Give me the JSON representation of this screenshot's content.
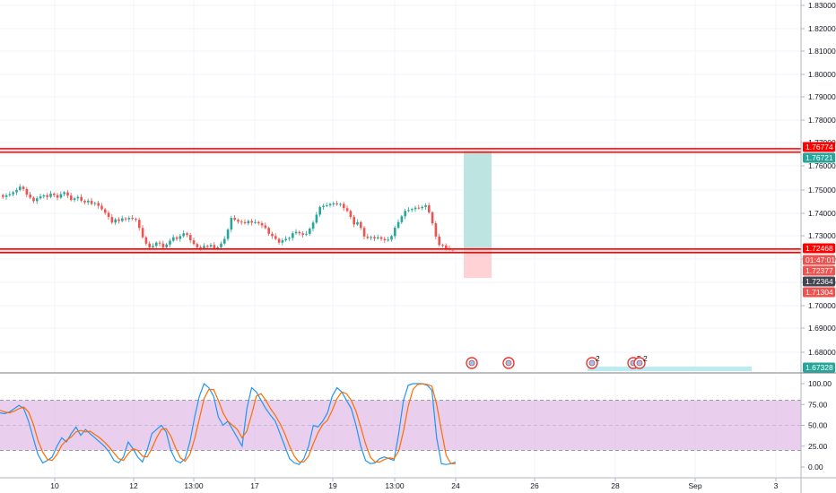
{
  "colors": {
    "up": "#26a69a",
    "down": "#ef5350",
    "grid": "#f0f3fa",
    "axis_line": "#b2b5be",
    "level_line": "#ff0000",
    "k_line": "#2196f3",
    "d_line": "#ff6d00",
    "stoch_band": "#e1bee7",
    "profit_zone": "#b2dfdb",
    "loss_zone": "#ffcdd2",
    "tag_dark": "#434651",
    "target_zone": "#b2ebf2"
  },
  "chart_data": [
    {
      "type": "candlestick",
      "panel": "price",
      "price_axis": {
        "ylim": [
          1.6715,
          1.8345
        ],
        "ticks": [
          1.83,
          1.82,
          1.81,
          1.8,
          1.79,
          1.78,
          1.77,
          1.76,
          1.75,
          1.74,
          1.73,
          1.72,
          1.71,
          1.7,
          1.69,
          1.68
        ],
        "tick_labels": [
          "1.83000",
          "1.82000",
          "1.81000",
          "1.80000",
          "1.79000",
          "1.78000",
          "1.77000",
          "1.76000",
          "1.75000",
          "1.74000",
          "1.73000",
          "1.72000",
          "1.71000",
          "1.70000",
          "1.69000",
          "1.68000"
        ]
      },
      "time_axis": {
        "tick_labels": [
          "10",
          "12",
          "13:00",
          "17",
          "19",
          "13:00",
          "24",
          "26",
          "28",
          "Sep",
          "3"
        ]
      },
      "candle_closes": [
        1.7478,
        1.7485,
        1.749,
        1.7498,
        1.7508,
        1.7522,
        1.7512,
        1.7488,
        1.7475,
        1.746,
        1.7472,
        1.748,
        1.7485,
        1.7478,
        1.7492,
        1.7486,
        1.7475,
        1.749,
        1.7498,
        1.7484,
        1.7465,
        1.7472,
        1.7478,
        1.7462,
        1.7455,
        1.7462,
        1.7448,
        1.7452,
        1.744,
        1.7425,
        1.741,
        1.7392,
        1.7368,
        1.7382,
        1.7375,
        1.7386,
        1.7382,
        1.7388,
        1.7384,
        1.738,
        1.7345,
        1.7305,
        1.7278,
        1.7262,
        1.7268,
        1.7282,
        1.7278,
        1.7262,
        1.7274,
        1.729,
        1.7305,
        1.7298,
        1.731,
        1.7322,
        1.7315,
        1.7292,
        1.7276,
        1.7262,
        1.7258,
        1.7268,
        1.7265,
        1.7272,
        1.7258,
        1.7262,
        1.7278,
        1.7298,
        1.7338,
        1.7388,
        1.738,
        1.7372,
        1.737,
        1.7365,
        1.7375,
        1.7368,
        1.737,
        1.7365,
        1.7356,
        1.7345,
        1.732,
        1.731,
        1.7298,
        1.7282,
        1.7292,
        1.7298,
        1.7302,
        1.7322,
        1.7328,
        1.7322,
        1.7316,
        1.732,
        1.7342,
        1.7368,
        1.7402,
        1.7435,
        1.744,
        1.7442,
        1.7448,
        1.745,
        1.7446,
        1.7448,
        1.743,
        1.7418,
        1.7392,
        1.736,
        1.737,
        1.7345,
        1.7308,
        1.7302,
        1.7306,
        1.73,
        1.7305,
        1.7298,
        1.7292,
        1.7295,
        1.731,
        1.7346,
        1.737,
        1.7395,
        1.7418,
        1.7422,
        1.7426,
        1.7432,
        1.743,
        1.7435,
        1.7442,
        1.7412,
        1.7365,
        1.7308,
        1.7272,
        1.727,
        1.7258,
        1.725,
        1.7248
      ],
      "horizontal_levels": [
        1.76774,
        1.72468
      ],
      "position": {
        "entry": 1.72468,
        "target": 1.76774,
        "stop": 1.71304
      },
      "price_labels": [
        {
          "label": "1.76774",
          "value": 1.76774,
          "kind": "level"
        },
        {
          "label": "1.76721",
          "value": 1.76721,
          "kind": "up"
        },
        {
          "label": "1.72468",
          "value": 1.72468,
          "kind": "level"
        },
        {
          "label": "01:47:01",
          "value": 1.7227,
          "kind": "down"
        },
        {
          "label": "1.72377",
          "value": 1.72377,
          "kind": "down"
        },
        {
          "label": "1.72364",
          "value": 1.72364,
          "kind": "dark"
        },
        {
          "label": "1.71304",
          "value": 1.71304,
          "kind": "down"
        },
        {
          "label": "1.67328",
          "value": 1.67328,
          "kind": "up"
        }
      ],
      "event_markers": [
        {
          "icon": "flag-event-icon",
          "label": ""
        },
        {
          "icon": "flag-event-icon",
          "label": ""
        },
        {
          "icon": "flag-event-icon",
          "label": "2"
        },
        {
          "icon": "flag-event-icon",
          "label": "5"
        },
        {
          "icon": "flag-event-icon",
          "label": "2"
        }
      ]
    },
    {
      "type": "line",
      "panel": "stochastic",
      "ylim": [
        -10,
        110
      ],
      "band": [
        20,
        80
      ],
      "ticks": [
        100,
        75,
        50,
        25,
        0
      ],
      "tick_labels": [
        "100.00",
        "75.00",
        "50.00",
        "25.00",
        "0.00"
      ],
      "series": [
        {
          "key": "k",
          "values": [
            65,
            64,
            66,
            70,
            74,
            70,
            55,
            35,
            15,
            5,
            8,
            12,
            25,
            35,
            30,
            40,
            48,
            38,
            45,
            40,
            35,
            30,
            25,
            18,
            8,
            5,
            12,
            30,
            22,
            12,
            6,
            20,
            40,
            45,
            50,
            42,
            20,
            8,
            5,
            10,
            30,
            60,
            85,
            100,
            95,
            85,
            60,
            50,
            55,
            45,
            35,
            25,
            70,
            95,
            90,
            80,
            70,
            62,
            55,
            40,
            25,
            10,
            5,
            3,
            10,
            25,
            50,
            48,
            55,
            65,
            85,
            95,
            90,
            80,
            70,
            50,
            25,
            8,
            4,
            5,
            10,
            12,
            10,
            8,
            40,
            80,
            98,
            100,
            100,
            100,
            98,
            92,
            35,
            4,
            3,
            4,
            6
          ]
        },
        {
          "key": "d",
          "values": [
            68,
            66,
            65,
            67,
            70,
            72,
            66,
            52,
            32,
            18,
            9,
            8,
            15,
            26,
            32,
            36,
            42,
            44,
            42,
            43,
            39,
            35,
            30,
            24,
            17,
            10,
            8,
            16,
            22,
            20,
            13,
            12,
            22,
            35,
            45,
            46,
            37,
            23,
            11,
            7,
            15,
            34,
            58,
            82,
            93,
            93,
            80,
            65,
            55,
            50,
            45,
            35,
            43,
            63,
            85,
            88,
            80,
            70,
            62,
            52,
            40,
            25,
            13,
            6,
            6,
            13,
            28,
            41,
            51,
            56,
            68,
            82,
            90,
            88,
            80,
            67,
            48,
            28,
            12,
            6,
            6,
            9,
            11,
            10,
            19,
            43,
            73,
            93,
            99,
            100,
            99,
            97,
            75,
            44,
            14,
            4,
            4
          ]
        }
      ]
    }
  ]
}
